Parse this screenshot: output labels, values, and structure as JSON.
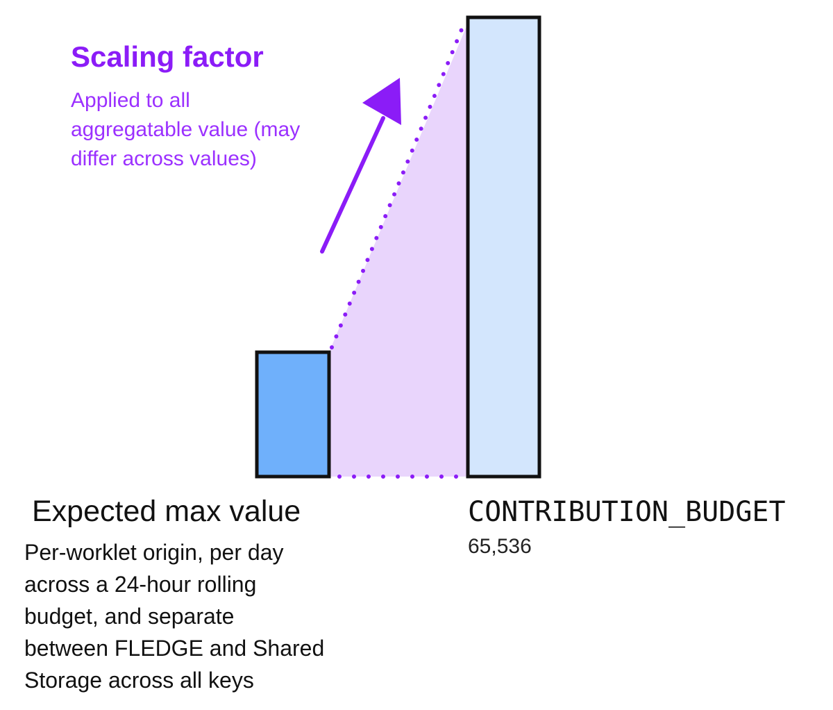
{
  "scaling": {
    "title": "Scaling factor",
    "description": [
      "Applied to all",
      "aggregatable value (may",
      "differ across values)"
    ]
  },
  "expected": {
    "title": "Expected max value",
    "description": [
      "Per-worklet origin, per day",
      "across a 24-hour rolling",
      "budget, and separate",
      "between FLEDGE and Shared",
      "Storage across all keys"
    ]
  },
  "budget": {
    "title": "CONTRIBUTION_BUDGET",
    "value": "65,536"
  },
  "colors": {
    "accent": "#8b1cf7",
    "small_bar": "#6fb0fb",
    "large_bar": "#d3e6fd",
    "scale_area": "#e9d5fc"
  }
}
